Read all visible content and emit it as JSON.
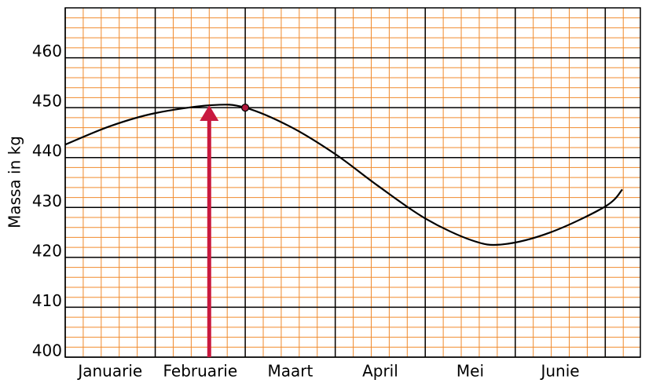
{
  "chart_data": {
    "type": "line",
    "ylabel": "Massa in kg",
    "categories": [
      "Januarie",
      "Februarie",
      "Maart",
      "April",
      "Mei",
      "Junie"
    ],
    "x": [
      0,
      0.5,
      1.0,
      1.63,
      2.0,
      2.5,
      3.0,
      3.47,
      4.0,
      4.52,
      4.86,
      5.39,
      6.0,
      6.19
    ],
    "series": [
      {
        "name": "Massa",
        "color": "#000000",
        "values": [
          442.6,
          446.3,
          448.9,
          450.5,
          450,
          446.2,
          440.7,
          434.4,
          427.8,
          423.4,
          422.6,
          425,
          430.2,
          433.6
        ]
      }
    ],
    "xlim": [
      0,
      6.39
    ],
    "xticks": [
      0,
      1,
      2,
      3,
      4,
      5,
      6
    ],
    "ylim": [
      400,
      470
    ],
    "yticks": [
      400,
      410,
      420,
      430,
      440,
      450,
      460
    ],
    "minor_xstep": 0.2,
    "minor_ystep": 2,
    "grid": true,
    "grid_color": "#000000",
    "minor_grid_color": "#f08a2c",
    "marker": {
      "x": 2,
      "y": 450,
      "color": "#b0183c"
    },
    "arrow": {
      "x": 1.6,
      "y": 450.5,
      "color": "#c8193f"
    }
  }
}
